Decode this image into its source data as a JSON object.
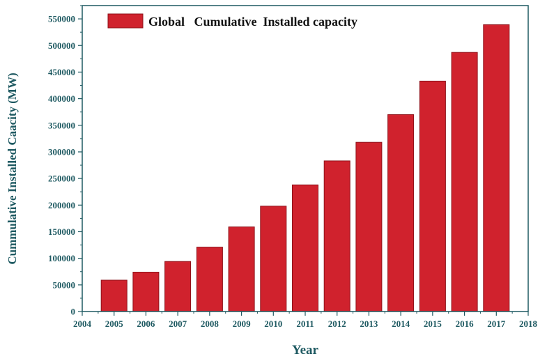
{
  "chart_data": {
    "type": "bar",
    "title": "",
    "xlabel": "Year",
    "ylabel": "Cummulative Installed Caacity (MW)",
    "legend": {
      "label": "Global   Cumulative  Installed capacity",
      "position": "top-left"
    },
    "series": [
      {
        "name": "Global   Cumulative  Installed capacity",
        "color": "#d0222d",
        "x": [
          2005,
          2006,
          2007,
          2008,
          2009,
          2010,
          2011,
          2012,
          2013,
          2014,
          2015,
          2016,
          2017
        ],
        "values": [
          59000,
          74000,
          94000,
          121000,
          159000,
          198000,
          238000,
          283000,
          318000,
          370000,
          433000,
          487000,
          539000
        ]
      }
    ],
    "xlim": [
      2004,
      2018
    ],
    "ylim": [
      0,
      575000
    ],
    "x_ticks": [
      "2004",
      "2005",
      "2006",
      "2007",
      "2008",
      "2009",
      "2010",
      "2011",
      "2012",
      "2013",
      "2014",
      "2015",
      "2016",
      "2017",
      "2018"
    ],
    "y_ticks": [
      "0",
      "50000",
      "100000",
      "150000",
      "200000",
      "250000",
      "300000",
      "350000",
      "400000",
      "450000",
      "500000",
      "550000"
    ],
    "grid": false,
    "colors": {
      "bar": "#d0222d",
      "bar_edge": "#8e1219",
      "axis": "#1f5a62"
    }
  }
}
